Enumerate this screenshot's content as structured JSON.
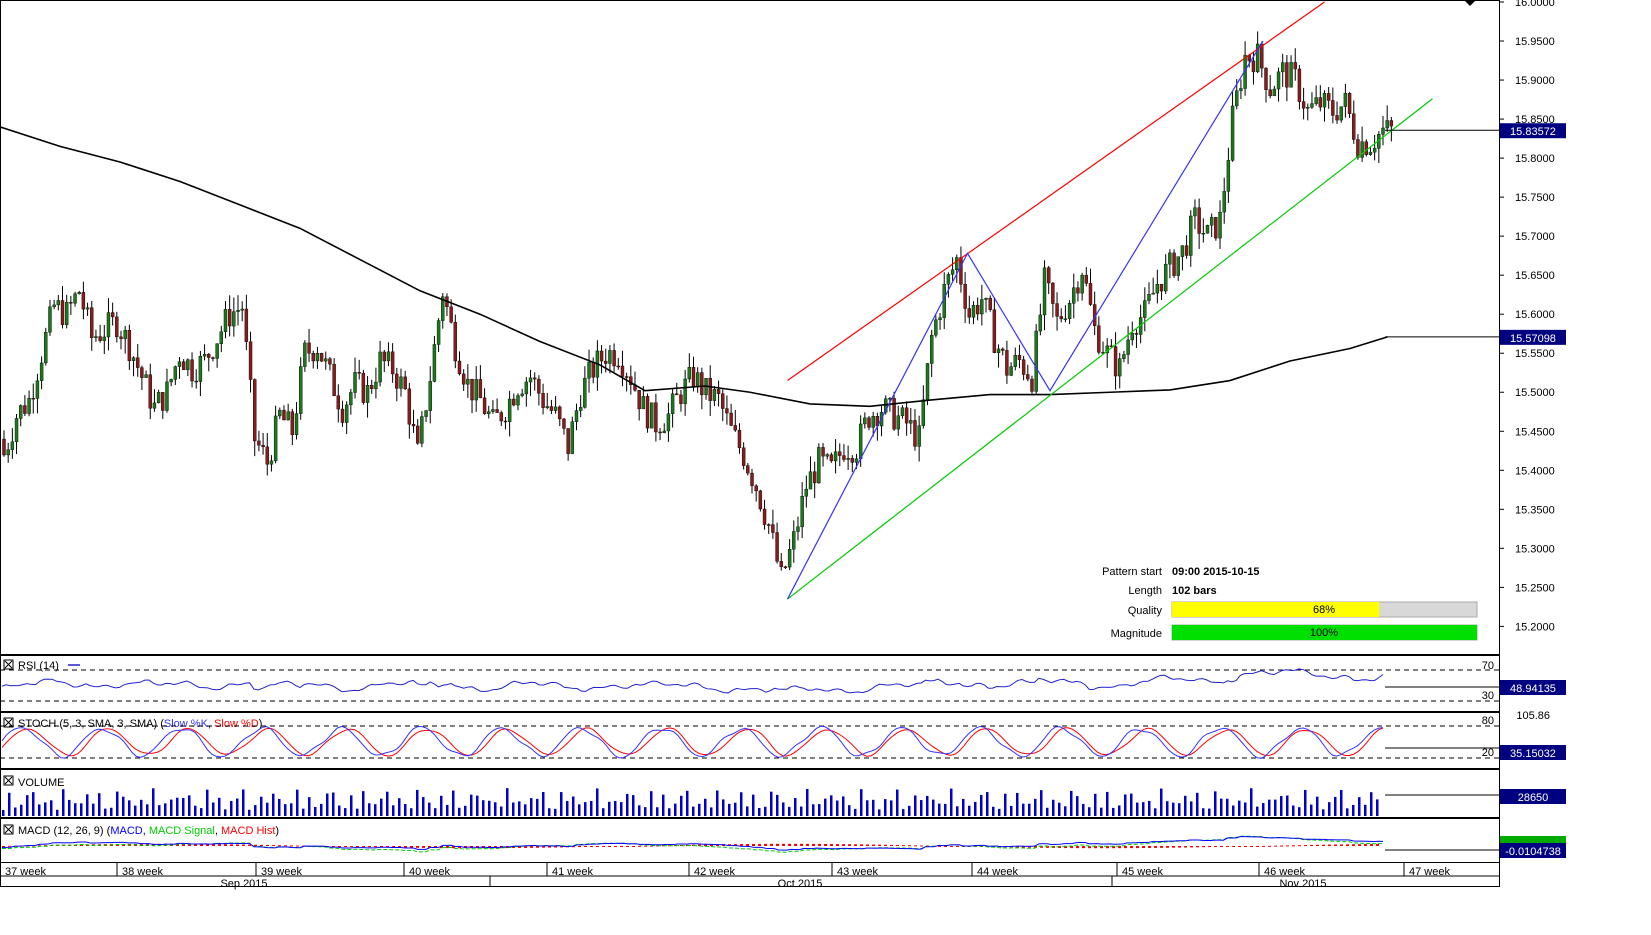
{
  "chart_data": {
    "type": "candlestick",
    "y_range": [
      15.18,
      16.0
    ],
    "price_ticks": [
      "16.0000",
      "15.9500",
      "15.9000",
      "15.8500",
      "15.8000",
      "15.7500",
      "15.7000",
      "15.6500",
      "15.6000",
      "15.5500",
      "15.5000",
      "15.4500",
      "15.4000",
      "15.3500",
      "15.3000",
      "15.2500",
      "15.2000"
    ],
    "current_price": "15.83572",
    "sma_value": "15.57098",
    "week_labels": [
      "37 week",
      "38 week",
      "39 week",
      "40 week",
      "41 week",
      "42 week",
      "43 week",
      "44 week",
      "45 week",
      "46 week",
      "47 week"
    ],
    "month_labels": [
      "Sep 2015",
      "Oct 2015",
      "Nov 2015"
    ],
    "pattern_info": {
      "start_label": "Pattern start",
      "start_value": "09:00 2015-10-15",
      "length_label": "Length",
      "length_value": "102 bars",
      "quality_label": "Quality",
      "quality_value": "68%",
      "quality_fraction": 0.68,
      "magnitude_label": "Magnitude",
      "magnitude_value": "100%",
      "magnitude_fraction": 1.0
    },
    "pattern_points": [
      {
        "x_frac": 0.525,
        "price": 15.235
      },
      {
        "x_frac": 0.645,
        "price": 15.678
      },
      {
        "x_frac": 0.7,
        "price": 15.502
      },
      {
        "x_frac": 0.842,
        "price": 15.95
      }
    ],
    "resistance_line": [
      {
        "x_frac": 0.525,
        "price": 15.515
      },
      {
        "x_frac": 0.883,
        "price": 16.0
      }
    ],
    "support_line": [
      {
        "x_frac": 0.525,
        "price": 15.235
      },
      {
        "x_frac": 0.955,
        "price": 15.876
      }
    ],
    "sma_path": [
      {
        "x_frac": 0.0,
        "price": 15.84
      },
      {
        "x_frac": 0.04,
        "price": 15.815
      },
      {
        "x_frac": 0.08,
        "price": 15.795
      },
      {
        "x_frac": 0.12,
        "price": 15.77
      },
      {
        "x_frac": 0.16,
        "price": 15.74
      },
      {
        "x_frac": 0.2,
        "price": 15.71
      },
      {
        "x_frac": 0.24,
        "price": 15.67
      },
      {
        "x_frac": 0.28,
        "price": 15.63
      },
      {
        "x_frac": 0.32,
        "price": 15.6
      },
      {
        "x_frac": 0.36,
        "price": 15.565
      },
      {
        "x_frac": 0.4,
        "price": 15.535
      },
      {
        "x_frac": 0.43,
        "price": 15.502
      },
      {
        "x_frac": 0.47,
        "price": 15.508
      },
      {
        "x_frac": 0.5,
        "price": 15.5
      },
      {
        "x_frac": 0.54,
        "price": 15.485
      },
      {
        "x_frac": 0.58,
        "price": 15.482
      },
      {
        "x_frac": 0.62,
        "price": 15.49
      },
      {
        "x_frac": 0.66,
        "price": 15.497
      },
      {
        "x_frac": 0.7,
        "price": 15.497
      },
      {
        "x_frac": 0.74,
        "price": 15.5
      },
      {
        "x_frac": 0.78,
        "price": 15.503
      },
      {
        "x_frac": 0.82,
        "price": 15.515
      },
      {
        "x_frac": 0.86,
        "price": 15.54
      },
      {
        "x_frac": 0.9,
        "price": 15.556
      },
      {
        "x_frac": 0.925,
        "price": 15.571
      }
    ],
    "close_path": [
      15.42,
      15.47,
      15.49,
      15.55,
      15.61,
      15.6,
      15.63,
      15.57,
      15.58,
      15.59,
      15.56,
      15.52,
      15.48,
      15.5,
      15.55,
      15.53,
      15.54,
      15.57,
      15.6,
      15.61,
      15.44,
      15.41,
      15.47,
      15.45,
      15.55,
      15.56,
      15.52,
      15.48,
      15.51,
      15.5,
      15.54,
      15.53,
      15.5,
      15.42,
      15.52,
      15.63,
      15.56,
      15.51,
      15.49,
      15.46,
      15.48,
      15.51,
      15.52,
      15.49,
      15.47,
      15.43,
      15.5,
      15.53,
      15.55,
      15.55,
      15.52,
      15.48,
      15.46,
      15.47,
      15.5,
      15.52,
      15.5,
      15.49,
      15.45,
      15.42,
      15.38,
      15.33,
      15.26,
      15.31,
      15.38,
      15.41,
      15.4,
      15.43,
      15.43,
      15.47,
      15.48,
      15.47,
      15.46,
      15.44,
      15.57,
      15.63,
      15.67,
      15.6,
      15.62,
      15.57,
      15.53,
      15.54,
      15.52,
      15.64,
      15.59,
      15.62,
      15.66,
      15.58,
      15.55,
      15.53,
      15.59,
      15.6,
      15.64,
      15.66,
      15.68,
      15.72,
      15.7,
      15.72,
      15.85,
      15.93,
      15.93,
      15.89,
      15.91,
      15.9,
      15.86,
      15.87,
      15.86,
      15.87,
      15.82,
      15.82,
      15.835
    ],
    "rsi": {
      "label": "RSI (14)",
      "value": "48.94135",
      "level_high": "70",
      "level_low": "30"
    },
    "stoch": {
      "label": "STOCH (5, 3, SMA, 3, SMA)",
      "k_label": "Slow %K",
      "d_label": "Slow %D",
      "value": "35.15032",
      "level_high": "80",
      "level_low": "20",
      "top_label": "105.86"
    },
    "volume": {
      "label": "VOLUME",
      "value": "28650"
    },
    "macd": {
      "label": "MACD (12, 26, 9)",
      "macd_label": "MACD",
      "signal_label": "MACD Signal",
      "hist_label": "MACD Hist",
      "value": "-0.0104738"
    },
    "colors": {
      "up": "#1a7a1a",
      "down": "#8b1a1a",
      "resistance": "#ff0000",
      "support": "#00cc00",
      "pattern": "#3333ff",
      "sma": "#000000",
      "rsi": "#2222cc",
      "stoch_k": "#3333ff",
      "stoch_d": "#ff0000",
      "volume": "#0000cc",
      "macd": "#0000ff",
      "macd_signal": "#00cc00",
      "macd_hist": "#ff0000",
      "value_box": "#000080",
      "quality_bar": "#ffff00",
      "magnitude_bar": "#00e000"
    }
  }
}
